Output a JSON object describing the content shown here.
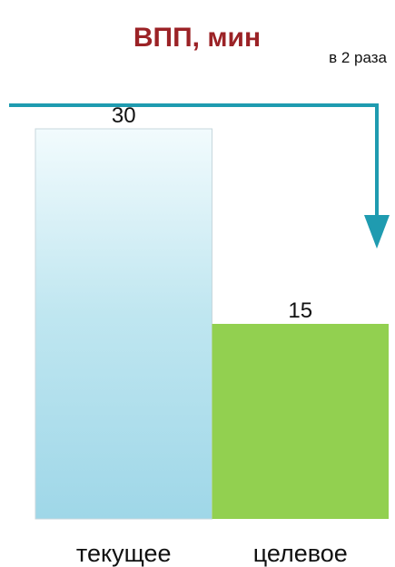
{
  "chart_data": {
    "type": "bar",
    "title": "ВПП, мин",
    "categories": [
      "текущее",
      "целевое"
    ],
    "values": [
      30,
      15
    ],
    "ylim": [
      0,
      30
    ],
    "xlabel": "",
    "ylabel": "",
    "grid": false,
    "legend": "none",
    "bar_labels": [
      "30",
      "15"
    ],
    "annotation": "в 2 раза",
    "colors": {
      "title": "#9b2226",
      "bar_current_top": "#f2fbfd",
      "bar_current_bottom": "#9fd7e8",
      "bar_target": "#92d050",
      "arrow": "#1f9bb0",
      "bar_border": "#c7d7dd"
    }
  }
}
